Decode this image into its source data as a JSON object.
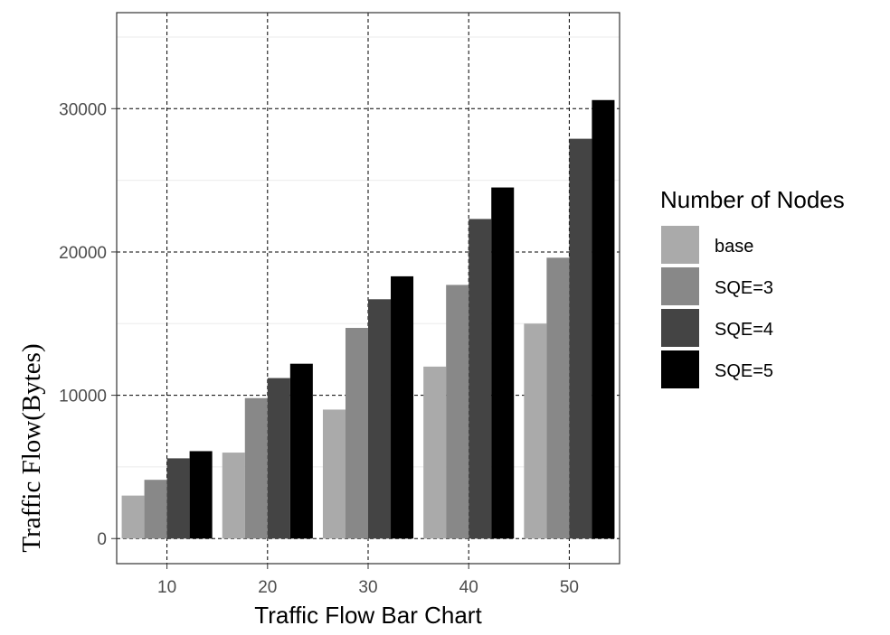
{
  "chart_data": {
    "type": "bar",
    "categories": [
      "10",
      "20",
      "30",
      "40",
      "50"
    ],
    "series": [
      {
        "name": "base",
        "color": "#aaaaaa",
        "values": [
          3000,
          6000,
          9000,
          12000,
          15000
        ]
      },
      {
        "name": "SQE=3",
        "color": "#888888",
        "values": [
          4100,
          9800,
          14700,
          17700,
          19600
        ]
      },
      {
        "name": "SQE=4",
        "color": "#444444",
        "values": [
          5600,
          11200,
          16700,
          22300,
          27900
        ]
      },
      {
        "name": "SQE=5",
        "color": "#000000",
        "values": [
          6100,
          12200,
          18300,
          24500,
          30600
        ]
      }
    ],
    "xlabel": "Traffic Flow Bar Chart",
    "ylabel": "Traffic Flow(Bytes)",
    "yticks": [
      0,
      10000,
      20000,
      30000
    ],
    "ytick_labels": [
      "0",
      "10000",
      "20000",
      "30000"
    ],
    "ylim": [
      -1750,
      36700
    ],
    "grid": true,
    "legend": {
      "title": "Number of Nodes",
      "position": "right"
    }
  }
}
